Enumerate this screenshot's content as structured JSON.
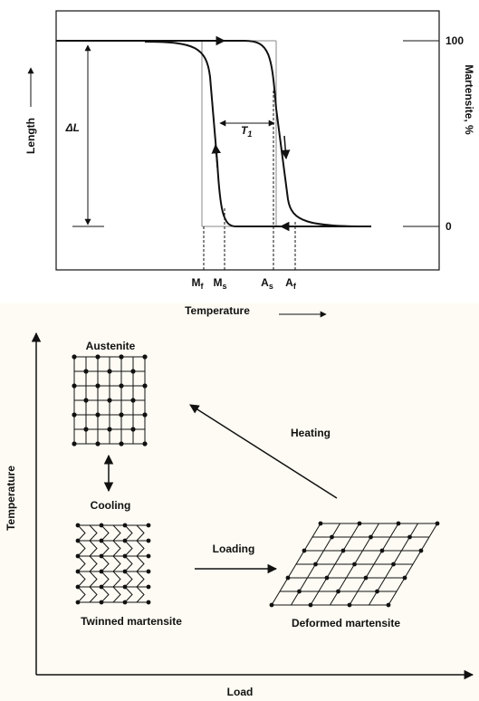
{
  "top_plot": {
    "y_left_label": "Length",
    "y_right_label": "Martensite, %",
    "x_label": "Temperature",
    "right_ticks": [
      "100",
      "0"
    ],
    "delta_label": "ΔL",
    "hysteresis_label": {
      "main": "T",
      "sub": "1"
    },
    "temperatures": [
      {
        "main": "M",
        "sub": "f"
      },
      {
        "main": "M",
        "sub": "s"
      },
      {
        "main": "A",
        "sub": "s"
      },
      {
        "main": "A",
        "sub": "f"
      }
    ]
  },
  "bottom_diagram": {
    "y_label": "Temperature",
    "x_label": "Load",
    "austenite": "Austenite",
    "cooling": "Cooling",
    "twinned": "Twinned martensite",
    "loading": "Loading",
    "heating": "Heating",
    "deformed": "Deformed martensite"
  }
}
